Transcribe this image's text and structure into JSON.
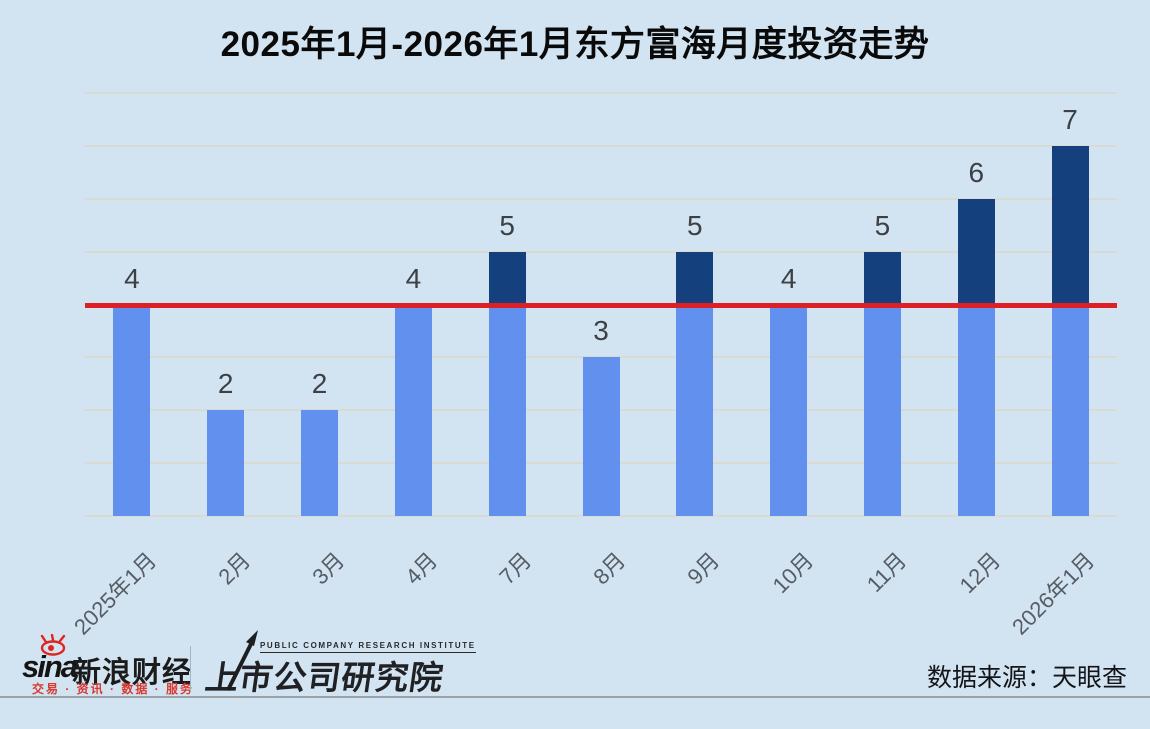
{
  "title": "2025年1月-2026年1月东方富海月度投资走势",
  "chart_data": {
    "type": "bar",
    "title": "2025年1月-2026年1月东方富海月度投资走势",
    "categories": [
      "2025年1月",
      "2月",
      "3月",
      "4月",
      "7月",
      "8月",
      "9月",
      "10月",
      "11月",
      "12月",
      "2026年1月"
    ],
    "values": [
      4,
      2,
      2,
      4,
      5,
      3,
      5,
      4,
      5,
      6,
      7
    ],
    "xlabel": "",
    "ylabel": "",
    "ylim": [
      0,
      8
    ],
    "grid": true,
    "legend": "none",
    "value_labels": true,
    "xlabel_rotation": 45,
    "reference_line": {
      "value": 4,
      "color": "#dd2025"
    },
    "colors": {
      "bar_below_line": "#6190ee",
      "bar_above_line": "#14417e",
      "background": "#d2e4f2",
      "gridline": "#d9dbd3",
      "value_label": "#3d4045",
      "x_label": "#575d64"
    }
  },
  "footer": {
    "sina_logo_text": "sina",
    "sina_brand": "新浪财经",
    "sina_tagline": "交易 · 资讯 · 数据 · 服务",
    "institute_name_en": "PUBLIC COMPANY RESEARCH INSTITUTE",
    "institute_name_cn": "上市公司研究院",
    "data_source": "数据来源：天眼查"
  },
  "icons": [
    {
      "name": "sina-eye-icon",
      "color": "#e0251f"
    },
    {
      "name": "trend-arrow-icon",
      "color": "#1e1e1e"
    }
  ]
}
